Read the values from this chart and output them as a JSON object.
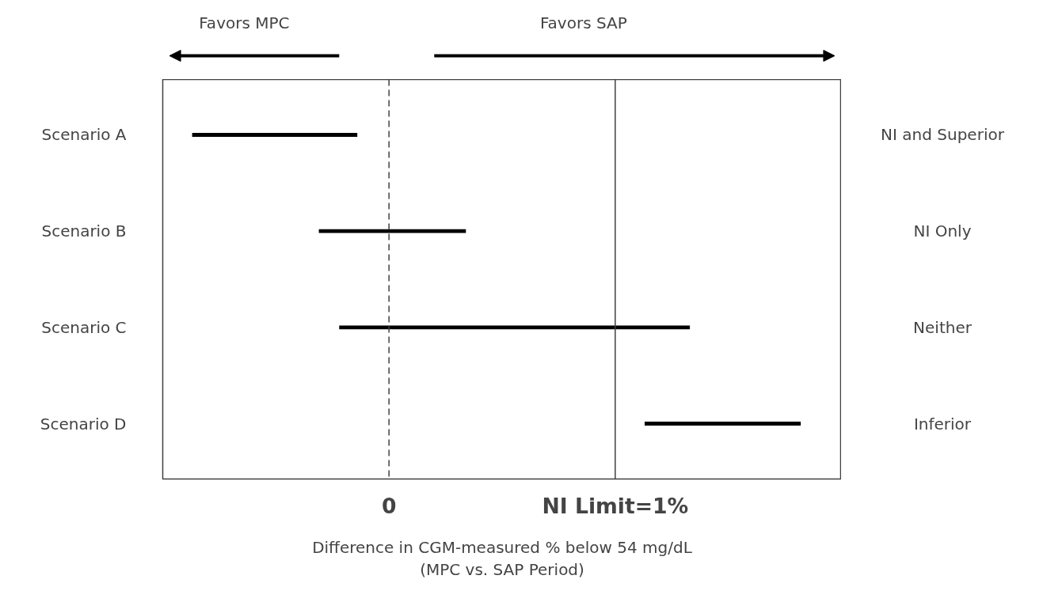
{
  "chart_data": {
    "type": "bar",
    "orientation": "horizontal",
    "xlabel": "Difference in CGM-measured % below 54 mg/dL\n(MPC vs. SAP Period)",
    "categories": [
      "Scenario A",
      "Scenario B",
      "Scenario C",
      "Scenario D"
    ],
    "base": [
      -0.87,
      -0.31,
      -0.22,
      1.13
    ],
    "values": [
      0.73,
      0.65,
      1.55,
      0.69
    ],
    "color": "#000000",
    "xlim": [
      -1,
      2
    ],
    "xticks": [
      0,
      {
        "value": 1,
        "label": "NI Limit=1%"
      }
    ],
    "ref_lines": [
      {
        "axis": "x",
        "value": 0,
        "color": "#404040",
        "line_style": "dashed"
      },
      {
        "axis": "x",
        "value": 1,
        "color": "#404040",
        "line_style": "solid"
      }
    ],
    "annotations": [
      "Favors MPC",
      "Favors SAP",
      "NI and Superior",
      "NI Only",
      "Neither",
      "Inferior"
    ],
    "grid": false
  }
}
